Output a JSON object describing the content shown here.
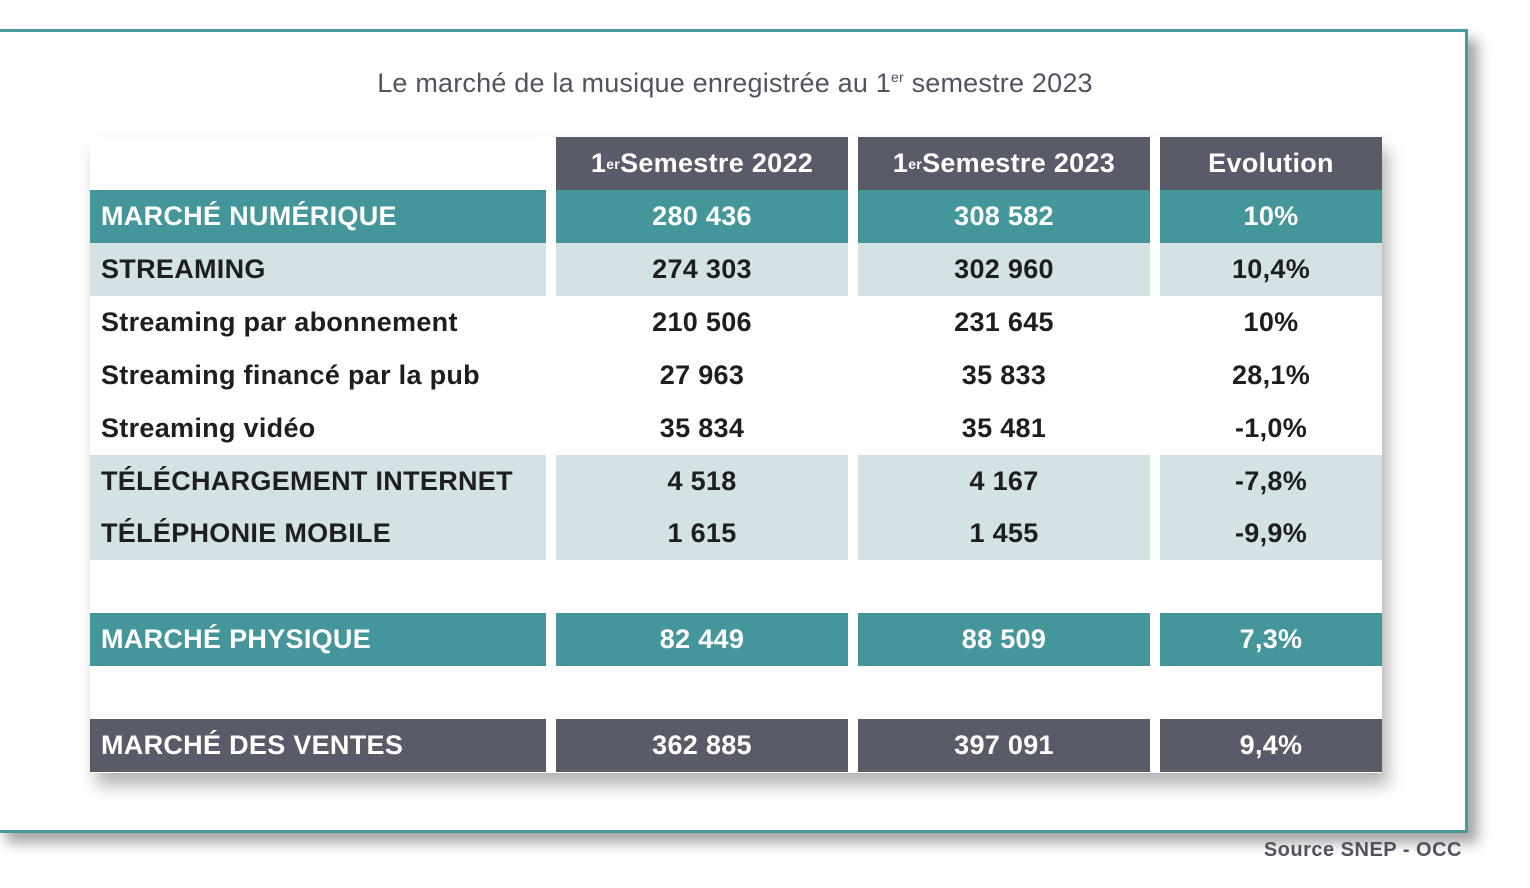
{
  "title": {
    "pre": "Le marché de la musique enregistrée au 1",
    "sup": "er",
    "post": " semestre 2023"
  },
  "chart_data": {
    "type": "table",
    "columns": [
      {
        "pre": "1",
        "sup": "er",
        "post": " Semestre 2022"
      },
      {
        "pre": "1",
        "sup": "er",
        "post": " Semestre 2023"
      },
      {
        "pre": "Evolution",
        "sup": "",
        "post": ""
      }
    ],
    "rows": [
      {
        "label": "MARCHÉ NUMÉRIQUE",
        "s2022": "280 436",
        "s2023": "308 582",
        "evolution": "10%",
        "style": "teal"
      },
      {
        "label": "STREAMING",
        "s2022": "274 303",
        "s2023": "302 960",
        "evolution": "10,4%",
        "style": "light"
      },
      {
        "label": "Streaming par abonnement",
        "s2022": "210 506",
        "s2023": "231 645",
        "evolution": "10%",
        "style": "plain"
      },
      {
        "label": "Streaming financé par la pub",
        "s2022": "27 963",
        "s2023": "35 833",
        "evolution": "28,1%",
        "style": "plain"
      },
      {
        "label": "Streaming vidéo",
        "s2022": "35 834",
        "s2023": "35 481",
        "evolution": "-1,0%",
        "style": "plain"
      },
      {
        "label": "TÉLÉCHARGEMENT INTERNET",
        "s2022": "4 518",
        "s2023": "4 167",
        "evolution": "-7,8%",
        "style": "light"
      },
      {
        "label": "TÉLÉPHONIE MOBILE",
        "s2022": "1 615",
        "s2023": "1 455",
        "evolution": "-9,9%",
        "style": "light"
      },
      {
        "label": "MARCHÉ PHYSIQUE",
        "s2022": "82 449",
        "s2023": "88 509",
        "evolution": "7,3%",
        "style": "teal"
      },
      {
        "label": "MARCHÉ DES VENTES",
        "s2022": "362 885",
        "s2023": "397 091",
        "evolution": "9,4%",
        "style": "dark"
      }
    ]
  },
  "colors": {
    "teal": "#45969a",
    "light": "#d3e2e5",
    "dark": "#595b68",
    "border": "#4a9a9c"
  },
  "source": "Source SNEP - OCC"
}
